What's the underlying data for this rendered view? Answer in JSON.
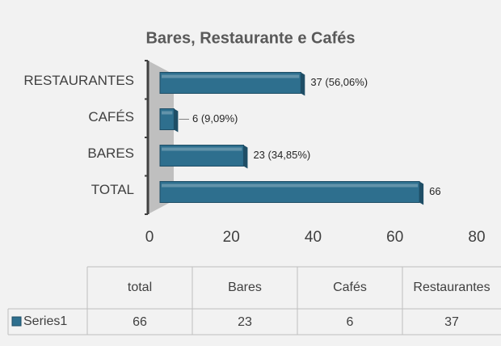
{
  "chart_data": {
    "type": "bar",
    "orientation": "horizontal",
    "title": "Bares, Restaurante e Cafés",
    "categories": [
      "RESTAURANTES",
      "CAFÉS",
      "BARES",
      "TOTAL"
    ],
    "series": [
      {
        "name": "Series1",
        "color": "#2e6f8e",
        "values": [
          37,
          6,
          23,
          66
        ],
        "value_labels": [
          "37 (56,06%)",
          "6 (9,09%)",
          "23 (34,85%)",
          "66"
        ]
      }
    ],
    "xlim": [
      0,
      80
    ],
    "xticks": [
      0,
      20,
      40,
      60,
      80
    ],
    "data_table": {
      "columns": [
        "total",
        "Bares",
        "Cafés",
        "Restaurantes"
      ],
      "values": [
        66,
        23,
        6,
        37
      ]
    }
  }
}
